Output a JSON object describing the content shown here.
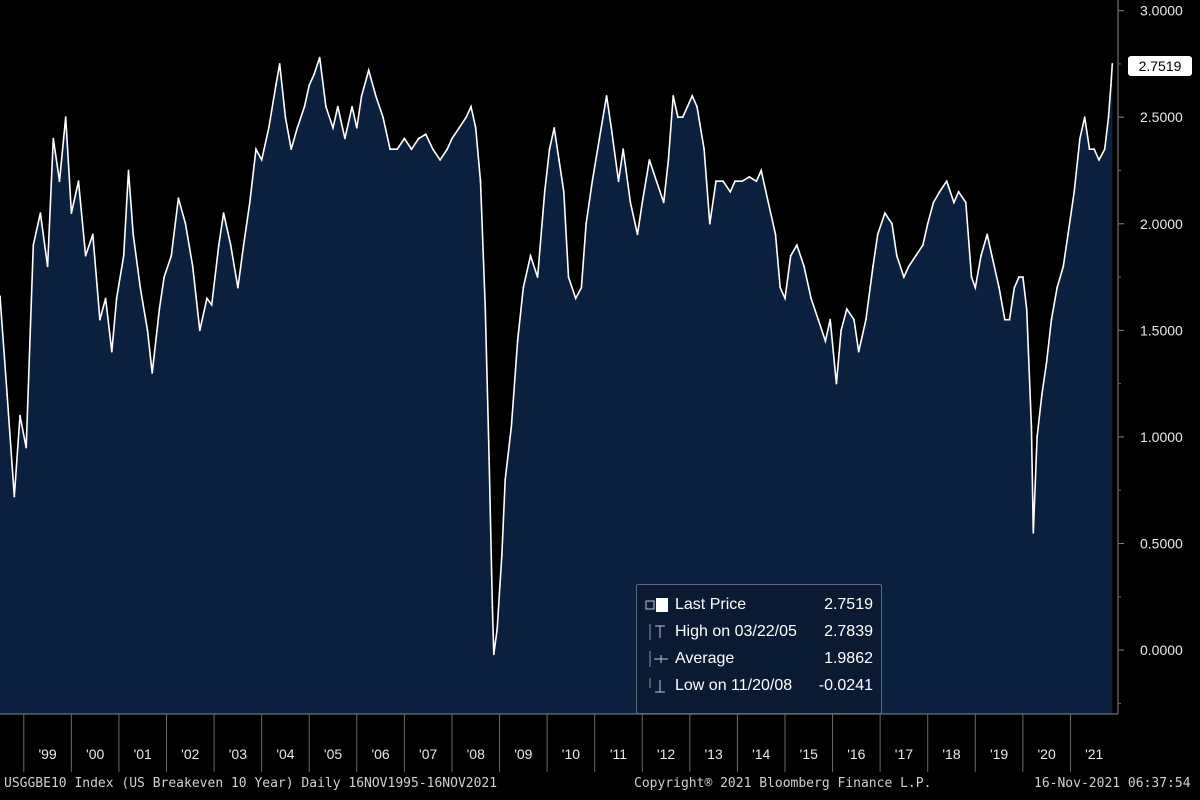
{
  "colors": {
    "background": "#000000",
    "area_fill": "#0b1f3f",
    "line": "#ffffff",
    "legend_bg": "#0b1a33"
  },
  "footer": {
    "left": "USGGBE10 Index (US Breakeven 10 Year)  Daily 16NOV1995-16NOV2021",
    "center": "Copyright® 2021 Bloomberg Finance L.P.",
    "right": "16-Nov-2021 06:37:54"
  },
  "legend": {
    "rows": [
      {
        "icon": "square-swatch-icon",
        "label": "Last Price",
        "value": "2.7519"
      },
      {
        "icon": "high-marker-icon",
        "label": "High on 03/22/05",
        "value": "2.7839"
      },
      {
        "icon": "average-marker-icon",
        "label": "Average",
        "value": "1.9862"
      },
      {
        "icon": "low-marker-icon",
        "label": "Low on 11/20/08",
        "value": "-0.0241"
      }
    ]
  },
  "last_price_tag": "2.7519",
  "chart_data": {
    "type": "area",
    "title": "",
    "ylim": [
      -0.3,
      3.05
    ],
    "grid": false,
    "y_ticks": [
      "3.0000",
      "2.5000",
      "2.0000",
      "1.5000",
      "1.0000",
      "0.5000",
      "0.0000"
    ],
    "x_ticks": [
      "'99",
      "'00",
      "'01",
      "'02",
      "'03",
      "'04",
      "'05",
      "'06",
      "'07",
      "'08",
      "'09",
      "'10",
      "'11",
      "'12",
      "'13",
      "'14",
      "'15",
      "'16",
      "'17",
      "'18",
      "'19",
      "'20",
      "'21"
    ],
    "series": [
      {
        "name": "Last Price",
        "points": [
          [
            1998.5,
            1.66
          ],
          [
            1998.65,
            1.2
          ],
          [
            1998.8,
            0.72
          ],
          [
            1998.92,
            1.1
          ],
          [
            1999.05,
            0.95
          ],
          [
            1999.2,
            1.9
          ],
          [
            1999.35,
            2.05
          ],
          [
            1999.5,
            1.8
          ],
          [
            1999.62,
            2.4
          ],
          [
            1999.75,
            2.2
          ],
          [
            1999.88,
            2.5
          ],
          [
            2000.0,
            2.05
          ],
          [
            2000.15,
            2.2
          ],
          [
            2000.3,
            1.85
          ],
          [
            2000.45,
            1.95
          ],
          [
            2000.6,
            1.55
          ],
          [
            2000.72,
            1.65
          ],
          [
            2000.85,
            1.4
          ],
          [
            2000.95,
            1.65
          ],
          [
            2001.1,
            1.85
          ],
          [
            2001.2,
            2.25
          ],
          [
            2001.3,
            1.95
          ],
          [
            2001.45,
            1.7
          ],
          [
            2001.6,
            1.5
          ],
          [
            2001.7,
            1.3
          ],
          [
            2001.85,
            1.6
          ],
          [
            2001.95,
            1.75
          ],
          [
            2002.1,
            1.85
          ],
          [
            2002.25,
            2.12
          ],
          [
            2002.4,
            2.0
          ],
          [
            2002.55,
            1.8
          ],
          [
            2002.7,
            1.5
          ],
          [
            2002.85,
            1.65
          ],
          [
            2002.95,
            1.62
          ],
          [
            2003.1,
            1.9
          ],
          [
            2003.2,
            2.05
          ],
          [
            2003.35,
            1.9
          ],
          [
            2003.5,
            1.7
          ],
          [
            2003.62,
            1.9
          ],
          [
            2003.75,
            2.1
          ],
          [
            2003.88,
            2.35
          ],
          [
            2004.0,
            2.3
          ],
          [
            2004.15,
            2.45
          ],
          [
            2004.3,
            2.65
          ],
          [
            2004.38,
            2.75
          ],
          [
            2004.5,
            2.5
          ],
          [
            2004.62,
            2.35
          ],
          [
            2004.75,
            2.45
          ],
          [
            2004.9,
            2.55
          ],
          [
            2005.0,
            2.65
          ],
          [
            2005.1,
            2.7
          ],
          [
            2005.22,
            2.78
          ],
          [
            2005.35,
            2.55
          ],
          [
            2005.5,
            2.45
          ],
          [
            2005.6,
            2.55
          ],
          [
            2005.75,
            2.4
          ],
          [
            2005.9,
            2.55
          ],
          [
            2006.0,
            2.45
          ],
          [
            2006.1,
            2.6
          ],
          [
            2006.25,
            2.72
          ],
          [
            2006.4,
            2.6
          ],
          [
            2006.55,
            2.5
          ],
          [
            2006.7,
            2.35
          ],
          [
            2006.85,
            2.35
          ],
          [
            2007.0,
            2.4
          ],
          [
            2007.15,
            2.35
          ],
          [
            2007.3,
            2.4
          ],
          [
            2007.45,
            2.42
          ],
          [
            2007.6,
            2.35
          ],
          [
            2007.75,
            2.3
          ],
          [
            2007.9,
            2.35
          ],
          [
            2008.0,
            2.4
          ],
          [
            2008.15,
            2.45
          ],
          [
            2008.3,
            2.5
          ],
          [
            2008.4,
            2.55
          ],
          [
            2008.5,
            2.45
          ],
          [
            2008.6,
            2.2
          ],
          [
            2008.7,
            1.6
          ],
          [
            2008.78,
            0.9
          ],
          [
            2008.85,
            0.2
          ],
          [
            2008.88,
            -0.02
          ],
          [
            2008.95,
            0.1
          ],
          [
            2009.05,
            0.45
          ],
          [
            2009.12,
            0.8
          ],
          [
            2009.25,
            1.05
          ],
          [
            2009.38,
            1.45
          ],
          [
            2009.5,
            1.7
          ],
          [
            2009.65,
            1.85
          ],
          [
            2009.8,
            1.75
          ],
          [
            2009.95,
            2.15
          ],
          [
            2010.05,
            2.35
          ],
          [
            2010.15,
            2.45
          ],
          [
            2010.25,
            2.3
          ],
          [
            2010.35,
            2.15
          ],
          [
            2010.45,
            1.75
          ],
          [
            2010.6,
            1.65
          ],
          [
            2010.72,
            1.7
          ],
          [
            2010.82,
            2.0
          ],
          [
            2010.95,
            2.2
          ],
          [
            2011.1,
            2.4
          ],
          [
            2011.25,
            2.6
          ],
          [
            2011.35,
            2.45
          ],
          [
            2011.5,
            2.2
          ],
          [
            2011.6,
            2.35
          ],
          [
            2011.75,
            2.1
          ],
          [
            2011.9,
            1.95
          ],
          [
            2012.0,
            2.1
          ],
          [
            2012.15,
            2.3
          ],
          [
            2012.3,
            2.2
          ],
          [
            2012.45,
            2.1
          ],
          [
            2012.55,
            2.3
          ],
          [
            2012.65,
            2.6
          ],
          [
            2012.75,
            2.5
          ],
          [
            2012.85,
            2.5
          ],
          [
            2012.95,
            2.55
          ],
          [
            2013.05,
            2.6
          ],
          [
            2013.15,
            2.55
          ],
          [
            2013.3,
            2.35
          ],
          [
            2013.42,
            2.0
          ],
          [
            2013.55,
            2.2
          ],
          [
            2013.7,
            2.2
          ],
          [
            2013.85,
            2.15
          ],
          [
            2013.95,
            2.2
          ],
          [
            2014.1,
            2.2
          ],
          [
            2014.25,
            2.22
          ],
          [
            2014.4,
            2.2
          ],
          [
            2014.5,
            2.25
          ],
          [
            2014.65,
            2.1
          ],
          [
            2014.8,
            1.95
          ],
          [
            2014.9,
            1.7
          ],
          [
            2015.0,
            1.65
          ],
          [
            2015.12,
            1.85
          ],
          [
            2015.25,
            1.9
          ],
          [
            2015.4,
            1.8
          ],
          [
            2015.55,
            1.65
          ],
          [
            2015.7,
            1.55
          ],
          [
            2015.85,
            1.45
          ],
          [
            2015.95,
            1.55
          ],
          [
            2016.08,
            1.25
          ],
          [
            2016.18,
            1.5
          ],
          [
            2016.3,
            1.6
          ],
          [
            2016.45,
            1.55
          ],
          [
            2016.55,
            1.4
          ],
          [
            2016.7,
            1.55
          ],
          [
            2016.85,
            1.8
          ],
          [
            2016.95,
            1.95
          ],
          [
            2017.1,
            2.05
          ],
          [
            2017.25,
            2.0
          ],
          [
            2017.35,
            1.85
          ],
          [
            2017.5,
            1.75
          ],
          [
            2017.6,
            1.8
          ],
          [
            2017.75,
            1.85
          ],
          [
            2017.9,
            1.9
          ],
          [
            2018.0,
            2.0
          ],
          [
            2018.12,
            2.1
          ],
          [
            2018.25,
            2.15
          ],
          [
            2018.4,
            2.2
          ],
          [
            2018.55,
            2.1
          ],
          [
            2018.65,
            2.15
          ],
          [
            2018.8,
            2.1
          ],
          [
            2018.92,
            1.75
          ],
          [
            2019.0,
            1.7
          ],
          [
            2019.12,
            1.85
          ],
          [
            2019.25,
            1.95
          ],
          [
            2019.35,
            1.85
          ],
          [
            2019.5,
            1.7
          ],
          [
            2019.62,
            1.55
          ],
          [
            2019.72,
            1.55
          ],
          [
            2019.82,
            1.7
          ],
          [
            2019.92,
            1.75
          ],
          [
            2020.0,
            1.75
          ],
          [
            2020.08,
            1.6
          ],
          [
            2020.18,
            1.05
          ],
          [
            2020.22,
            0.55
          ],
          [
            2020.3,
            1.0
          ],
          [
            2020.4,
            1.2
          ],
          [
            2020.5,
            1.35
          ],
          [
            2020.6,
            1.55
          ],
          [
            2020.72,
            1.7
          ],
          [
            2020.85,
            1.8
          ],
          [
            2020.95,
            1.95
          ],
          [
            2021.08,
            2.15
          ],
          [
            2021.2,
            2.4
          ],
          [
            2021.3,
            2.5
          ],
          [
            2021.4,
            2.35
          ],
          [
            2021.5,
            2.35
          ],
          [
            2021.6,
            2.3
          ],
          [
            2021.72,
            2.35
          ],
          [
            2021.8,
            2.5
          ],
          [
            2021.85,
            2.65
          ],
          [
            2021.88,
            2.75
          ]
        ]
      }
    ]
  }
}
